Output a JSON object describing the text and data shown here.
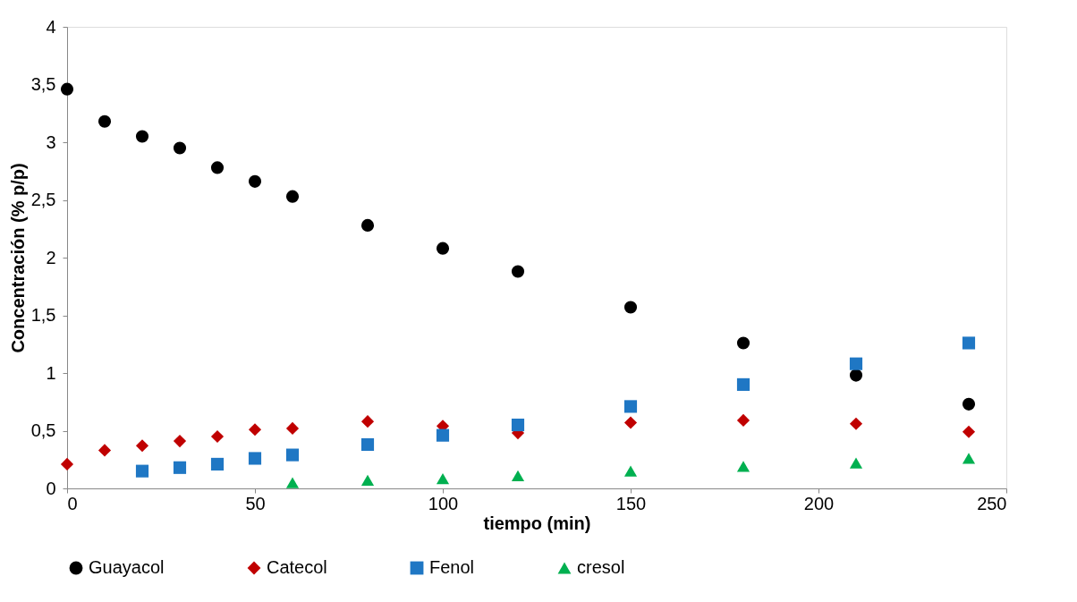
{
  "chart_data": {
    "type": "scatter",
    "xlabel": "tiempo (min)",
    "ylabel": "Concentración (% p/p)",
    "xlim": [
      0,
      250
    ],
    "xticks": [
      0,
      50,
      100,
      150,
      200,
      250
    ],
    "ylim": [
      0,
      4
    ],
    "yticks": [
      0,
      {
        "value": 0.5,
        "label": "0,5"
      },
      1,
      {
        "value": 1.5,
        "label": "1,5"
      },
      2,
      {
        "value": 2.5,
        "label": "2,5"
      },
      3,
      {
        "value": 3.5,
        "label": "3,5"
      },
      4
    ],
    "grid": false,
    "legend": "bottom",
    "series": [
      {
        "name": "Guayacol",
        "color": "#000000",
        "marker": "circle",
        "x": [
          0,
          10,
          20,
          30,
          40,
          50,
          60,
          80,
          100,
          120,
          150,
          180,
          210,
          240
        ],
        "values": [
          3.46,
          3.18,
          3.05,
          2.95,
          2.78,
          2.66,
          2.53,
          2.28,
          2.08,
          1.88,
          1.57,
          1.26,
          0.98,
          0.73
        ]
      },
      {
        "name": "Catecol",
        "color": "#c00000",
        "marker": "diamond",
        "x": [
          0,
          10,
          20,
          30,
          40,
          50,
          60,
          80,
          100,
          120,
          150,
          180,
          210,
          240
        ],
        "values": [
          0.21,
          0.33,
          0.37,
          0.41,
          0.45,
          0.51,
          0.52,
          0.58,
          0.54,
          0.48,
          0.57,
          0.59,
          0.56,
          0.49
        ]
      },
      {
        "name": "Fenol",
        "color": "#1f77c4",
        "marker": "square",
        "x": [
          20,
          30,
          40,
          50,
          60,
          80,
          100,
          120,
          150,
          180,
          210,
          240
        ],
        "values": [
          0.15,
          0.18,
          0.21,
          0.26,
          0.29,
          0.38,
          0.46,
          0.55,
          0.71,
          0.9,
          1.08,
          1.26
        ]
      },
      {
        "name": "cresol",
        "color": "#00b050",
        "marker": "triangle",
        "x": [
          60,
          80,
          100,
          120,
          150,
          180,
          210,
          240
        ],
        "values": [
          0.05,
          0.07,
          0.085,
          0.11,
          0.15,
          0.19,
          0.22,
          0.26
        ]
      }
    ]
  }
}
